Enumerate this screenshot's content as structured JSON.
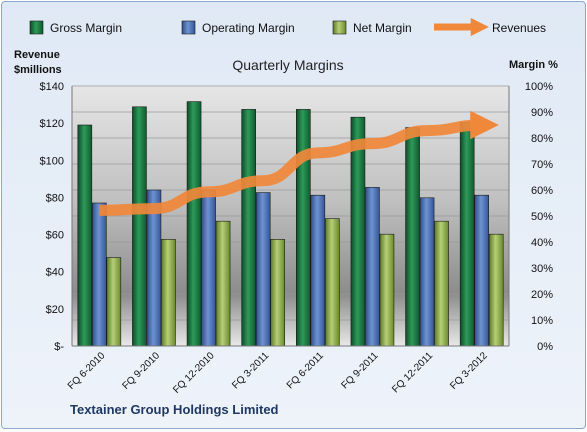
{
  "chart_data": {
    "type": "bar",
    "title": "Quarterly Margins",
    "categories": [
      "FQ 6-2010",
      "FQ 9-2010",
      "FQ 12-2010",
      "FQ 3-2011",
      "FQ 6-2011",
      "FQ 9-2011",
      "FQ 12-2011",
      "FQ 3-2012"
    ],
    "series": [
      {
        "name": "Gross Margin",
        "axis": "right",
        "color": "#1e7a46",
        "values": [
          85,
          92,
          94,
          91,
          91,
          88,
          84,
          86
        ]
      },
      {
        "name": "Operating Margin",
        "axis": "right",
        "color": "#4a6fb0",
        "values": [
          55,
          60,
          60,
          59,
          58,
          61,
          57,
          58
        ]
      },
      {
        "name": "Net Margin",
        "axis": "right",
        "color": "#8fae4a",
        "values": [
          34,
          41,
          48,
          41,
          49,
          43,
          48,
          43
        ]
      }
    ],
    "line_series": {
      "name": "Revenues",
      "axis": "left",
      "color": "#f0883a",
      "values": [
        73,
        74,
        83,
        89,
        104,
        109,
        116,
        119
      ]
    },
    "y_left": {
      "label_line1": "Revenue",
      "label_line2": "$millions",
      "min": 0,
      "max": 140,
      "ticks": [
        "$-",
        "$20",
        "$40",
        "$60",
        "$80",
        "$100",
        "$120",
        "$140"
      ]
    },
    "y_right": {
      "label": "Margin %",
      "min": 0,
      "max": 100,
      "ticks": [
        "0%",
        "10%",
        "20%",
        "30%",
        "40%",
        "50%",
        "60%",
        "70%",
        "80%",
        "90%",
        "100%"
      ]
    },
    "legend": [
      "Gross Margin",
      "Operating Margin",
      "Net Margin",
      "Revenues"
    ],
    "legend_position": "top",
    "grid": true
  },
  "footer": "Textainer Group Holdings Limited"
}
